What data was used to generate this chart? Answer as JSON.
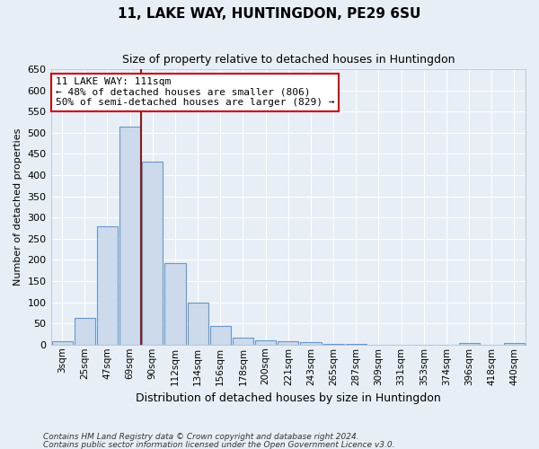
{
  "title": "11, LAKE WAY, HUNTINGDON, PE29 6SU",
  "subtitle": "Size of property relative to detached houses in Huntingdon",
  "xlabel": "Distribution of detached houses by size in Huntingdon",
  "ylabel": "Number of detached properties",
  "footnote1": "Contains HM Land Registry data © Crown copyright and database right 2024.",
  "footnote2": "Contains public sector information licensed under the Open Government Licence v3.0.",
  "bar_labels": [
    "3sqm",
    "25sqm",
    "47sqm",
    "69sqm",
    "90sqm",
    "112sqm",
    "134sqm",
    "156sqm",
    "178sqm",
    "200sqm",
    "221sqm",
    "243sqm",
    "265sqm",
    "287sqm",
    "309sqm",
    "331sqm",
    "353sqm",
    "374sqm",
    "396sqm",
    "418sqm",
    "440sqm"
  ],
  "bar_values": [
    8,
    62,
    280,
    515,
    432,
    193,
    100,
    45,
    17,
    11,
    8,
    5,
    2,
    1,
    0,
    0,
    0,
    0,
    3,
    0,
    3
  ],
  "bar_color": "#ccdaeb",
  "bar_edge_color": "#6699cc",
  "bg_color": "#e8eef5",
  "grid_color": "#ffffff",
  "vline_x": 3.5,
  "vline_color": "#8b1a1a",
  "annotation_text": "11 LAKE WAY: 111sqm\n← 48% of detached houses are smaller (806)\n50% of semi-detached houses are larger (829) →",
  "annotation_box_facecolor": "#ffffff",
  "annotation_box_edgecolor": "#cc0000",
  "ylim": [
    0,
    650
  ],
  "yticks": [
    0,
    50,
    100,
    150,
    200,
    250,
    300,
    350,
    400,
    450,
    500,
    550,
    600,
    650
  ]
}
